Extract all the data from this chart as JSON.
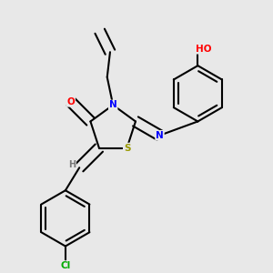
{
  "background_color": "#e8e8e8",
  "bond_color": "#000000",
  "atom_colors": {
    "N": "#0000ff",
    "O": "#ff0000",
    "S": "#999900",
    "Cl": "#00aa00",
    "H": "#777777",
    "C": "#000000",
    "OH": "#ff0000"
  },
  "figsize": [
    3.0,
    3.0
  ],
  "dpi": 100
}
